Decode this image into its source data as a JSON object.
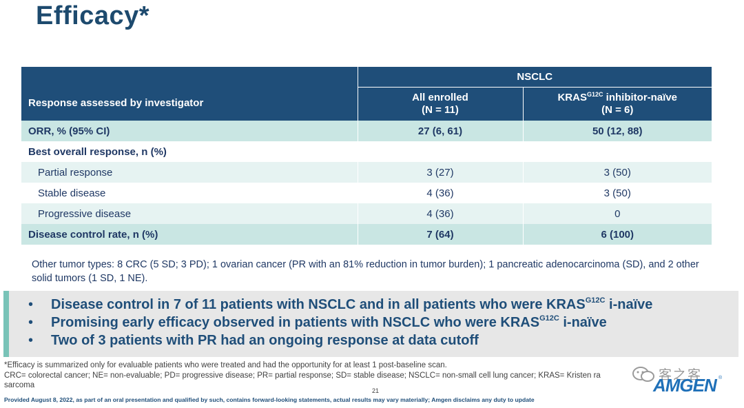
{
  "title": "Efficacy*",
  "table": {
    "col_header": "Response assessed by investigator",
    "group_header": "NSCLC",
    "col1": {
      "line1": "All enrolled",
      "line2": "(N = 11)"
    },
    "col2": {
      "pre": "KRAS",
      "sup": "G12C",
      "post": " inhibitor-naïve",
      "line2": "(N = 6)"
    },
    "rows": [
      {
        "label": "ORR, % (95% CI)",
        "v1": "27 (6, 61)",
        "v2": "50 (12, 88)"
      },
      {
        "label": "Best overall response, n (%)",
        "v1": "",
        "v2": ""
      },
      {
        "label": "Partial response",
        "v1": "3 (27)",
        "v2": "3 (50)"
      },
      {
        "label": "Stable disease",
        "v1": "4 (36)",
        "v2": "3 (50)"
      },
      {
        "label": "Progressive disease",
        "v1": "4 (36)",
        "v2": "0"
      },
      {
        "label": "Disease control rate, n (%)",
        "v1": "7 (64)",
        "v2": "6 (100)"
      }
    ]
  },
  "other_tumor": "Other tumor types: 8 CRC (5 SD; 3 PD); 1 ovarian cancer (PR with an 81% reduction in tumor burden); 1 pancreatic adenocarcinoma (SD), and 2 other solid tumors (1 SD, 1 NE).",
  "bullets": [
    {
      "pre": "Disease control in 7 of 11 patients with NSCLC and in all patients who were KRAS",
      "sup": "G12C",
      "post": " i-naïve"
    },
    {
      "pre": "Promising early efficacy observed in patients with NSCLC who were KRAS",
      "sup": "G12C",
      "post": " i-naïve"
    },
    {
      "pre": "Two of 3 patients with PR had an ongoing response at data cutoff",
      "sup": "",
      "post": ""
    }
  ],
  "bullet_char": "•",
  "footnote1": "*Efficacy is summarized only for evaluable patients who were treated and had the opportunity for at least 1 post-baseline scan.",
  "footnote2": "CRC= colorectal cancer; NE= non-evaluable; PD= progressive disease; PR= partial response; SD= stable disease; NSCLC= non-small cell lung cancer; KRAS= Kristen ra",
  "footnote3": "sarcoma",
  "page_number": "21",
  "provided": "Provided August 8, 2022, as part of an oral presentation and qualified by such, contains forward-looking statements, actual results may vary materially; Amgen disclaims any duty to update",
  "watermark": "客之客",
  "logo": "AMGEN",
  "logo_mark": "®",
  "colors": {
    "header_bg": "#1f4e79",
    "teal_row": "#c9e6e3",
    "light_row": "#e6f3f2",
    "accent_bar": "#79c3b8",
    "title": "#1d4a6e"
  }
}
